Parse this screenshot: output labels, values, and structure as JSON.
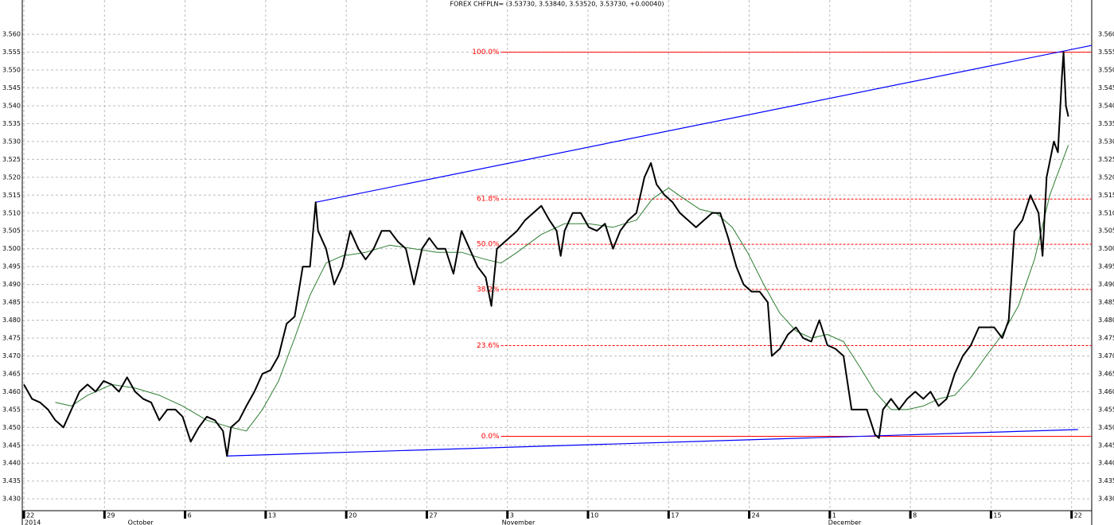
{
  "chart_data": {
    "type": "line",
    "title": "FOREX CHFPLN= (3.53730, 3.53840, 3.53520, 3.53730, +0.00040)",
    "xlim": [
      -0.02,
      13.25
    ],
    "ylim": [
      3.4267,
      3.5696
    ],
    "grid": true,
    "yticks": [
      {
        "value": 3.43,
        "label": "3.430"
      },
      3.435,
      {
        "value": 3.44,
        "label": "3.440"
      },
      3.445,
      {
        "value": 3.45,
        "label": "3.450"
      },
      3.455,
      {
        "value": 3.46,
        "label": "3.460"
      },
      3.465,
      {
        "value": 3.47,
        "label": "3.470"
      },
      3.475,
      {
        "value": 3.48,
        "label": "3.480"
      },
      3.485,
      {
        "value": 3.49,
        "label": "3.490"
      },
      3.495,
      {
        "value": 3.5,
        "label": "3.500"
      },
      3.505,
      {
        "value": 3.51,
        "label": "3.510"
      },
      3.515,
      {
        "value": 3.52,
        "label": "3.520"
      },
      3.525,
      {
        "value": 3.53,
        "label": "3.530"
      },
      3.535,
      {
        "value": 3.54,
        "label": "3.540"
      },
      3.545,
      {
        "value": 3.55,
        "label": "3.550"
      },
      3.555,
      {
        "value": 3.56,
        "label": "3.560"
      }
    ],
    "xticks": [
      {
        "value": 0,
        "label": "22"
      },
      {
        "value": 1,
        "label": "29"
      },
      {
        "value": 2,
        "label": "6"
      },
      {
        "value": 3,
        "label": "13"
      },
      {
        "value": 4,
        "label": "20"
      },
      {
        "value": 5,
        "label": "27"
      },
      {
        "value": 6,
        "label": "3"
      },
      {
        "value": 7,
        "label": "10"
      },
      {
        "value": 8,
        "label": "17"
      },
      {
        "value": 9,
        "label": "24"
      },
      {
        "value": 10,
        "label": "1"
      },
      {
        "value": 11,
        "label": "8"
      },
      {
        "value": 12,
        "label": "15"
      },
      {
        "value": 13,
        "label": "22"
      }
    ],
    "month_labels": [
      {
        "value": 0,
        "label": "2014"
      },
      {
        "value": 1.28,
        "label": "October"
      },
      {
        "value": 5.92,
        "label": "November"
      },
      {
        "value": 9.97,
        "label": "December"
      }
    ],
    "series": [
      {
        "color": "#000000",
        "x": [
          0,
          0.1,
          0.2,
          0.3,
          0.39,
          0.49,
          0.59,
          0.69,
          0.79,
          0.89,
          0.99,
          1.09,
          1.18,
          1.28,
          1.38,
          1.48,
          1.58,
          1.68,
          1.78,
          1.88,
          1.97,
          2.07,
          2.17,
          2.27,
          2.37,
          2.47,
          2.52,
          2.57,
          2.67,
          2.76,
          2.86,
          2.96,
          3.06,
          3.16,
          3.26,
          3.36,
          3.46,
          3.55,
          3.62,
          3.65,
          3.75,
          3.85,
          3.95,
          4.05,
          4.15,
          4.24,
          4.34,
          4.44,
          4.54,
          4.64,
          4.74,
          4.84,
          4.94,
          5.03,
          5.13,
          5.23,
          5.33,
          5.43,
          5.53,
          5.63,
          5.73,
          5.8,
          5.87,
          6.02,
          6.12,
          6.22,
          6.32,
          6.42,
          6.52,
          6.61,
          6.66,
          6.71,
          6.81,
          6.91,
          7.01,
          7.11,
          7.21,
          7.31,
          7.4,
          7.5,
          7.6,
          7.7,
          7.78,
          7.85,
          7.95,
          8.05,
          8.14,
          8.24,
          8.34,
          8.44,
          8.54,
          8.64,
          8.74,
          8.84,
          8.93,
          9.03,
          9.13,
          9.23,
          9.28,
          9.38,
          9.48,
          9.58,
          9.67,
          9.77,
          9.87,
          9.97,
          10.07,
          10.17,
          10.27,
          10.37,
          10.46,
          10.56,
          10.61,
          10.66,
          10.76,
          10.86,
          10.96,
          11.06,
          11.16,
          11.25,
          11.35,
          11.45,
          11.55,
          11.65,
          11.75,
          11.85,
          11.94,
          12.04,
          12.14,
          12.22,
          12.29,
          12.39,
          12.49,
          12.59,
          12.64,
          12.69,
          12.78,
          12.83,
          12.88,
          12.9,
          12.93,
          12.96
        ],
        "values": [
          3.462,
          3.458,
          3.457,
          3.455,
          3.452,
          3.45,
          3.455,
          3.46,
          3.462,
          3.46,
          3.463,
          3.462,
          3.46,
          3.464,
          3.46,
          3.458,
          3.457,
          3.452,
          3.455,
          3.455,
          3.453,
          3.446,
          3.45,
          3.453,
          3.452,
          3.449,
          3.442,
          3.45,
          3.452,
          3.456,
          3.46,
          3.465,
          3.466,
          3.47,
          3.479,
          3.481,
          3.495,
          3.495,
          3.513,
          3.505,
          3.5,
          3.49,
          3.495,
          3.505,
          3.5,
          3.497,
          3.5,
          3.505,
          3.505,
          3.502,
          3.5,
          3.49,
          3.5,
          3.503,
          3.5,
          3.5,
          3.493,
          3.505,
          3.5,
          3.495,
          3.492,
          3.484,
          3.5,
          3.503,
          3.505,
          3.508,
          3.51,
          3.512,
          3.508,
          3.505,
          3.498,
          3.505,
          3.51,
          3.51,
          3.506,
          3.505,
          3.507,
          3.5,
          3.505,
          3.508,
          3.51,
          3.52,
          3.524,
          3.518,
          3.515,
          3.513,
          3.51,
          3.508,
          3.506,
          3.508,
          3.51,
          3.51,
          3.503,
          3.495,
          3.49,
          3.488,
          3.488,
          3.485,
          3.47,
          3.472,
          3.476,
          3.478,
          3.475,
          3.474,
          3.48,
          3.473,
          3.472,
          3.47,
          3.455,
          3.455,
          3.455,
          3.448,
          3.447,
          3.455,
          3.458,
          3.455,
          3.458,
          3.46,
          3.458,
          3.46,
          3.456,
          3.458,
          3.465,
          3.47,
          3.473,
          3.478,
          3.478,
          3.478,
          3.475,
          3.48,
          3.505,
          3.508,
          3.515,
          3.51,
          3.498,
          3.52,
          3.53,
          3.527,
          3.548,
          3.555,
          3.54,
          3.537
        ]
      },
      {
        "color": "#2e7d32",
        "x": [
          0.39,
          0.59,
          0.79,
          1.09,
          1.38,
          1.68,
          1.97,
          2.27,
          2.57,
          2.76,
          2.96,
          3.16,
          3.36,
          3.55,
          3.75,
          3.95,
          4.24,
          4.54,
          4.84,
          5.13,
          5.43,
          5.73,
          5.92,
          6.12,
          6.42,
          6.71,
          7.01,
          7.31,
          7.6,
          7.8,
          8.0,
          8.19,
          8.39,
          8.59,
          8.79,
          8.98,
          9.18,
          9.38,
          9.58,
          9.77,
          9.97,
          10.17,
          10.37,
          10.56,
          10.76,
          10.96,
          11.16,
          11.35,
          11.55,
          11.75,
          11.94,
          12.14,
          12.34,
          12.54,
          12.73,
          12.96
        ],
        "values": [
          3.457,
          3.456,
          3.459,
          3.462,
          3.461,
          3.459,
          3.456,
          3.452,
          3.45,
          3.449,
          3.455,
          3.463,
          3.475,
          3.487,
          3.496,
          3.498,
          3.499,
          3.501,
          3.5,
          3.499,
          3.499,
          3.497,
          3.496,
          3.499,
          3.504,
          3.507,
          3.507,
          3.506,
          3.508,
          3.514,
          3.517,
          3.514,
          3.511,
          3.51,
          3.506,
          3.499,
          3.49,
          3.482,
          3.477,
          3.475,
          3.476,
          3.474,
          3.467,
          3.46,
          3.455,
          3.455,
          3.456,
          3.458,
          3.459,
          3.464,
          3.47,
          3.476,
          3.484,
          3.497,
          3.515,
          3.529
        ]
      }
    ],
    "fibonacci": {
      "color": "#ff0000",
      "start_x": 5.92,
      "levels": [
        {
          "label": "100.0%",
          "value": 3.555,
          "dashed": false
        },
        {
          "label": "61.8%",
          "value": 3.5139,
          "dashed": true
        },
        {
          "label": "50.0%",
          "value": 3.50125,
          "dashed": true
        },
        {
          "label": "38.2%",
          "value": 3.4886,
          "dashed": true
        },
        {
          "label": "23.6%",
          "value": 3.4729,
          "dashed": true
        },
        {
          "label": "0.0%",
          "value": 3.4475,
          "dashed": false
        }
      ]
    },
    "trendlines": [
      {
        "color": "#0000ff",
        "x": [
          3.62,
          13.25
        ],
        "values": [
          3.513,
          3.5569
        ]
      },
      {
        "color": "#0000ff",
        "x": [
          2.52,
          13.08
        ],
        "values": [
          3.442,
          3.4494
        ]
      }
    ]
  }
}
